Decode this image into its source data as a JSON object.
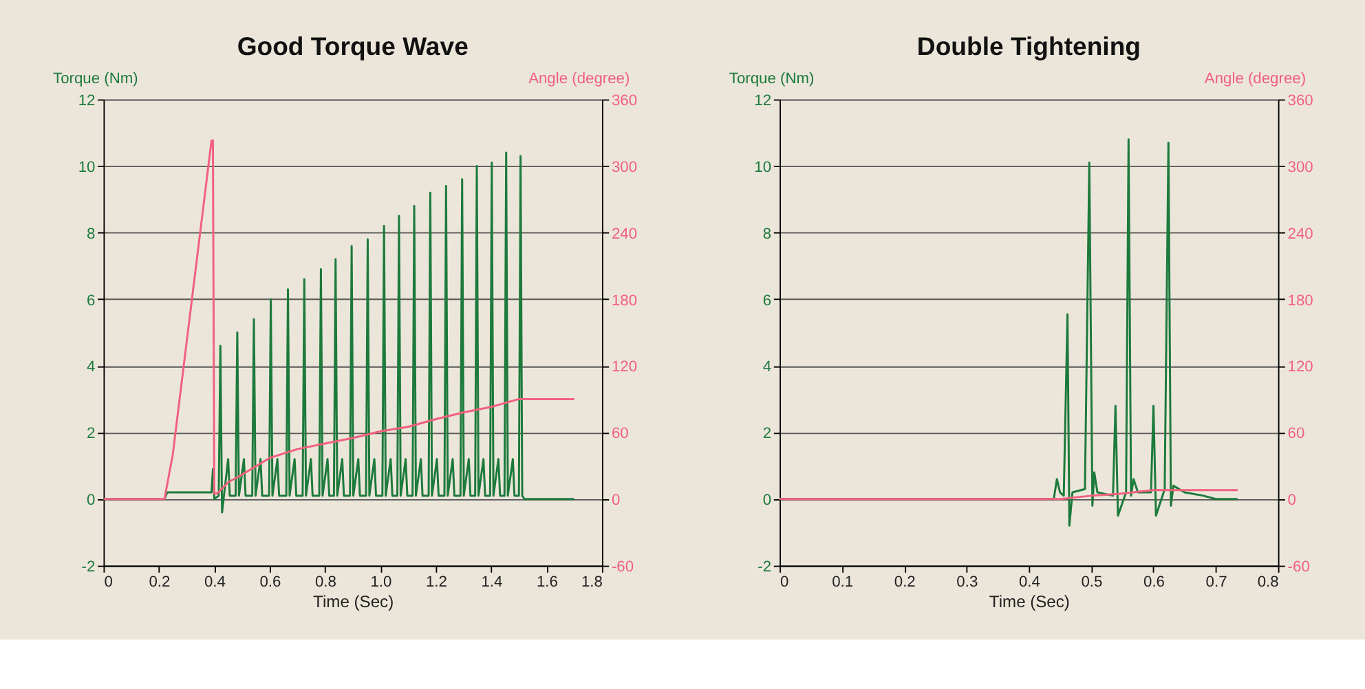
{
  "chart_data": [
    {
      "type": "line",
      "title": "Good Torque Wave",
      "xlabel": "Time (Sec)",
      "ylabel": "Torque (Nm)",
      "y2label": "Angle (degree)",
      "xlim": [
        0,
        1.8
      ],
      "xticks": [
        0,
        0.2,
        0.4,
        0.6,
        0.8,
        {
          "value": 1,
          "label": "1.0"
        },
        1.2,
        1.4,
        1.6,
        1.8
      ],
      "ylim": [
        -2,
        12
      ],
      "yticks": [
        -2,
        0,
        2,
        4,
        6,
        8,
        10,
        12
      ],
      "y2lim": [
        -60,
        360
      ],
      "y2ticks": [
        -60,
        0,
        60,
        120,
        180,
        240,
        300,
        360
      ],
      "grid": "y",
      "series": [
        {
          "color": "#1c7a3c",
          "x": [
            0,
            0.22,
            0.23,
            0.39,
            0.395,
            0.4,
            0.416,
            0.422,
            0.428,
            0.45,
            0.456,
            0.477,
            0.483,
            0.489,
            0.507,
            0.513,
            0.537,
            0.543,
            0.549,
            0.567,
            0.573,
            0.598,
            0.604,
            0.61,
            0.628,
            0.634,
            0.66,
            0.666,
            0.672,
            0.69,
            0.696,
            0.719,
            0.725,
            0.731,
            0.749,
            0.755,
            0.779,
            0.785,
            0.791,
            0.809,
            0.815,
            0.832,
            0.838,
            0.844,
            0.862,
            0.868,
            0.89,
            0.896,
            0.902,
            0.92,
            0.926,
            0.948,
            0.954,
            0.96,
            0.978,
            0.984,
            1.007,
            1.013,
            1.019,
            1.037,
            1.043,
            1.061,
            1.067,
            1.073,
            1.091,
            1.097,
            1.116,
            1.122,
            1.128,
            1.146,
            1.152,
            1.174,
            1.18,
            1.186,
            1.204,
            1.21,
            1.231,
            1.237,
            1.243,
            1.261,
            1.267,
            1.289,
            1.295,
            1.301,
            1.319,
            1.325,
            1.342,
            1.348,
            1.354,
            1.372,
            1.378,
            1.396,
            1.402,
            1.408,
            1.426,
            1.432,
            1.448,
            1.454,
            1.46,
            1.478,
            1.484,
            1.5,
            1.506,
            1.512,
            1.52,
            1.7
          ],
          "values": [
            0,
            0,
            0.2,
            0.2,
            0.9,
            0,
            0.1,
            4.6,
            -0.4,
            1.2,
            0.1,
            0.1,
            5.0,
            0.1,
            1.2,
            0.1,
            0.1,
            5.4,
            0.1,
            1.2,
            0.1,
            0.1,
            6.0,
            0.1,
            1.2,
            0.1,
            0.1,
            6.3,
            0.1,
            1.2,
            0.1,
            0.1,
            6.6,
            0.1,
            1.2,
            0.1,
            0.1,
            6.9,
            0.1,
            1.2,
            0.1,
            0.1,
            7.2,
            0.1,
            1.2,
            0.1,
            0.1,
            7.6,
            0.1,
            1.2,
            0.1,
            0.1,
            7.8,
            0.1,
            1.2,
            0.1,
            0.1,
            8.2,
            0.1,
            1.2,
            0.1,
            0.1,
            8.5,
            0.1,
            1.2,
            0.1,
            0.1,
            8.8,
            0.1,
            1.2,
            0.1,
            0.1,
            9.2,
            0.1,
            1.2,
            0.1,
            0.1,
            9.4,
            0.1,
            1.2,
            0.1,
            0.1,
            9.6,
            0.1,
            1.2,
            0.1,
            0.1,
            10.0,
            0.1,
            1.2,
            0.1,
            0.1,
            10.1,
            0.1,
            1.2,
            0.1,
            0.1,
            10.4,
            0.1,
            1.2,
            0.1,
            0.1,
            10.3,
            0.1,
            0,
            0
          ]
        },
        {
          "color": "#f2607e",
          "axis": "y2",
          "x": [
            0,
            0.22,
            0.25,
            0.39,
            0.395,
            0.4,
            0.41,
            0.45,
            0.5,
            0.6,
            0.7,
            0.8,
            0.9,
            1.0,
            1.1,
            1.2,
            1.3,
            1.4,
            1.5,
            1.7
          ],
          "values": [
            0,
            0,
            40,
            323,
            323,
            5,
            5,
            15,
            22,
            37,
            45,
            50,
            55,
            61,
            65,
            72,
            78,
            83,
            90,
            90
          ]
        }
      ]
    },
    {
      "type": "line",
      "title": "Double Tightening",
      "xlabel": "Time (Sec)",
      "ylabel": "Torque (Nm)",
      "y2label": "Angle (degree)",
      "xlim": [
        0,
        0.8
      ],
      "xticks": [
        0,
        0.1,
        0.2,
        0.3,
        0.4,
        0.5,
        0.6,
        0.7,
        0.8
      ],
      "ylim": [
        -2,
        12
      ],
      "yticks": [
        -2,
        0,
        2,
        4,
        6,
        8,
        10,
        12
      ],
      "y2lim": [
        -60,
        360
      ],
      "y2ticks": [
        -60,
        0,
        60,
        120,
        180,
        240,
        300,
        360
      ],
      "grid": "y",
      "series": [
        {
          "color": "#1c7a3c",
          "x": [
            0,
            0.44,
            0.445,
            0.45,
            0.456,
            0.462,
            0.465,
            0.47,
            0.49,
            0.497,
            0.502,
            0.505,
            0.51,
            0.535,
            0.539,
            0.543,
            0.556,
            0.56,
            0.564,
            0.568,
            0.575,
            0.596,
            0.6,
            0.604,
            0.618,
            0.624,
            0.628,
            0.632,
            0.65,
            0.68,
            0.7,
            0.735
          ],
          "values": [
            0,
            0,
            0.6,
            0.2,
            0.1,
            5.55,
            -0.8,
            0.2,
            0.3,
            10.1,
            -0.2,
            0.8,
            0.2,
            0.1,
            2.8,
            -0.5,
            0.2,
            10.8,
            0.1,
            0.6,
            0.2,
            0.2,
            2.8,
            -0.5,
            0.3,
            10.7,
            -0.2,
            0.4,
            0.2,
            0.1,
            0,
            0
          ]
        },
        {
          "color": "#f2607e",
          "axis": "y2",
          "x": [
            0,
            0.45,
            0.5,
            0.55,
            0.6,
            0.735
          ],
          "values": [
            0,
            0,
            3,
            5,
            8,
            8
          ]
        }
      ]
    }
  ]
}
